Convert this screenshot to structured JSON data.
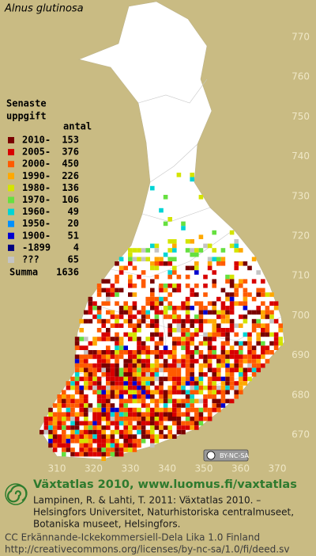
{
  "title": "Alnus glutinosa",
  "legend": {
    "heading": [
      "Senaste",
      "uppgift"
    ],
    "count_header": "antal",
    "rows": [
      {
        "label": "2010-",
        "count": 153,
        "color": "#7a0000"
      },
      {
        "label": "2005-",
        "count": 376,
        "color": "#d80000"
      },
      {
        "label": "2000-",
        "count": 450,
        "color": "#ff5a00"
      },
      {
        "label": "1990-",
        "count": 226,
        "color": "#ffa800"
      },
      {
        "label": "1980-",
        "count": 136,
        "color": "#d4e400"
      },
      {
        "label": "1970-",
        "count": 106,
        "color": "#66e040"
      },
      {
        "label": "1960-",
        "count": 49,
        "color": "#00d4d4"
      },
      {
        "label": "1950-",
        "count": 20,
        "color": "#0090ff"
      },
      {
        "label": "1900-",
        "count": 51,
        "color": "#0000d0"
      },
      {
        "label": "-1899",
        "count": 4,
        "color": "#000080"
      },
      {
        "label": "???",
        "count": 65,
        "color": "#c4c4c4"
      }
    ],
    "total": {
      "label": "Summa",
      "count": 1636
    }
  },
  "axes": {
    "y_labels": [
      770,
      760,
      750,
      740,
      730,
      720,
      710,
      700,
      690,
      680,
      670
    ],
    "x_labels": [
      310,
      320,
      330,
      340,
      350,
      360,
      370
    ]
  },
  "license_badge": "BY-NC-SA",
  "footer": {
    "heading": "Växtatlas 2010, www.luomus.fi/vaxtatlas",
    "citation": [
      "Lampinen, R. & Lahti, T. 2011: Växtatlas 2010. –",
      "Helsingfors Universitet, Naturhistoriska centralmuseet,",
      "Botaniska museet, Helsingfors."
    ],
    "license": [
      "CC Erkännande-Ickekommersiell-Dela Lika 1.0 Finland",
      "http://creativecommons.org/licenses/by-nc-sa/1.0/fi/deed.sv"
    ]
  }
}
